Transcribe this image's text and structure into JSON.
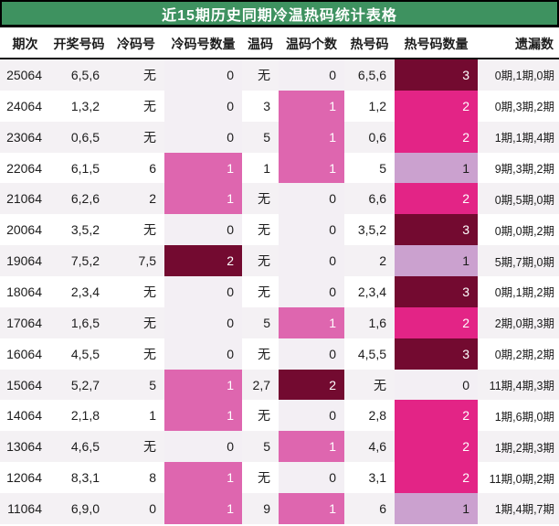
{
  "title": "近15期历史同期冷温热码统计表格",
  "chart_data": {
    "type": "table",
    "title": "近15期历史同期冷温热码统计表格",
    "columns": [
      "期次",
      "开奖号码",
      "冷码号",
      "冷码号数量",
      "温码",
      "温码个数",
      "热号码",
      "热号码数量",
      "遗漏数"
    ],
    "rows": [
      {
        "period": "25064",
        "numbers": "6,5,6",
        "cold": "无",
        "cold_count": 0,
        "warm": "无",
        "warm_count": 0,
        "hot": "6,5,6",
        "hot_count": 3,
        "omission": "0期,1期,0期"
      },
      {
        "period": "24064",
        "numbers": "1,3,2",
        "cold": "无",
        "cold_count": 0,
        "warm": "3",
        "warm_count": 1,
        "hot": "1,2",
        "hot_count": 2,
        "omission": "0期,3期,2期"
      },
      {
        "period": "23064",
        "numbers": "0,6,5",
        "cold": "无",
        "cold_count": 0,
        "warm": "5",
        "warm_count": 1,
        "hot": "0,6",
        "hot_count": 2,
        "omission": "1期,1期,4期"
      },
      {
        "period": "22064",
        "numbers": "6,1,5",
        "cold": "6",
        "cold_count": 1,
        "warm": "1",
        "warm_count": 1,
        "hot": "5",
        "hot_count": 1,
        "omission": "9期,3期,2期"
      },
      {
        "period": "21064",
        "numbers": "6,2,6",
        "cold": "2",
        "cold_count": 1,
        "warm": "无",
        "warm_count": 0,
        "hot": "6,6",
        "hot_count": 2,
        "omission": "0期,5期,0期"
      },
      {
        "period": "20064",
        "numbers": "3,5,2",
        "cold": "无",
        "cold_count": 0,
        "warm": "无",
        "warm_count": 0,
        "hot": "3,5,2",
        "hot_count": 3,
        "omission": "0期,0期,2期"
      },
      {
        "period": "19064",
        "numbers": "7,5,2",
        "cold": "7,5",
        "cold_count": 2,
        "warm": "无",
        "warm_count": 0,
        "hot": "2",
        "hot_count": 1,
        "omission": "5期,7期,0期"
      },
      {
        "period": "18064",
        "numbers": "2,3,4",
        "cold": "无",
        "cold_count": 0,
        "warm": "无",
        "warm_count": 0,
        "hot": "2,3,4",
        "hot_count": 3,
        "omission": "0期,1期,2期"
      },
      {
        "period": "17064",
        "numbers": "1,6,5",
        "cold": "无",
        "cold_count": 0,
        "warm": "5",
        "warm_count": 1,
        "hot": "1,6",
        "hot_count": 2,
        "omission": "2期,0期,3期"
      },
      {
        "period": "16064",
        "numbers": "4,5,5",
        "cold": "无",
        "cold_count": 0,
        "warm": "无",
        "warm_count": 0,
        "hot": "4,5,5",
        "hot_count": 3,
        "omission": "0期,2期,2期"
      },
      {
        "period": "15064",
        "numbers": "5,2,7",
        "cold": "5",
        "cold_count": 1,
        "warm": "2,7",
        "warm_count": 2,
        "hot": "无",
        "hot_count": 0,
        "omission": "11期,4期,3期"
      },
      {
        "period": "14064",
        "numbers": "2,1,8",
        "cold": "1",
        "cold_count": 1,
        "warm": "无",
        "warm_count": 0,
        "hot": "2,8",
        "hot_count": 2,
        "omission": "1期,6期,0期"
      },
      {
        "period": "13064",
        "numbers": "4,6,5",
        "cold": "无",
        "cold_count": 0,
        "warm": "5",
        "warm_count": 1,
        "hot": "4,6",
        "hot_count": 2,
        "omission": "1期,2期,3期"
      },
      {
        "period": "12064",
        "numbers": "8,3,1",
        "cold": "8",
        "cold_count": 1,
        "warm": "无",
        "warm_count": 0,
        "hot": "3,1",
        "hot_count": 2,
        "omission": "11期,0期,2期"
      },
      {
        "period": "11064",
        "numbers": "6,9,0",
        "cold": "0",
        "cold_count": 1,
        "warm": "9",
        "warm_count": 1,
        "hot": "6",
        "hot_count": 1,
        "omission": "1期,4期,7期"
      }
    ]
  },
  "colors": {
    "title_bg": "#3e9260",
    "title_text": "#ffffff",
    "count_zero_bg": "#f3eff4",
    "cw_level1_bg": "#de66af",
    "level_max_bg": "#730a30",
    "hot_level1_bg": "#cba1cf",
    "hot_level2_bg": "#e32486",
    "heat_text_light": "#ffffff",
    "text_dark": "#1c1c1c",
    "row_stripe_bg": "#f4f1f4"
  }
}
